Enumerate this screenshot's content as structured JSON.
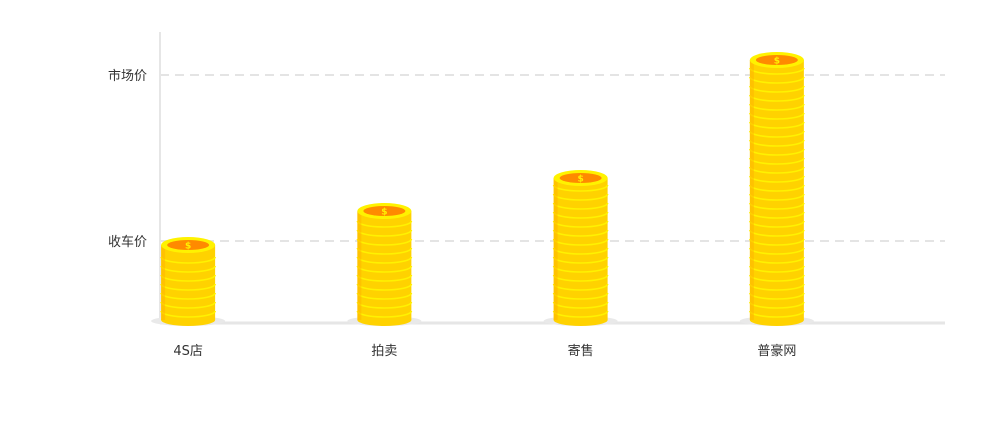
{
  "chart_data": {
    "type": "bar",
    "title": "",
    "xlabel": "",
    "ylabel": "",
    "categories": [
      "4S店",
      "拍卖",
      "寄售",
      "普豪网"
    ],
    "values": [
      75,
      109,
      142,
      260
    ],
    "ylim": [
      0,
      290
    ],
    "reference_lines": [
      {
        "label": "收车价",
        "value": 79
      },
      {
        "label": "市场价",
        "value": 245
      }
    ],
    "grid": false,
    "legend": "none",
    "colors": {
      "coin": "#ffd200",
      "coin_edge": "#ffb400",
      "coin_rim": "#fff200",
      "coin_face": "#ff8a00",
      "axis": "#e6e6e6",
      "reference_line": "#e4e4e4",
      "label_text": "#333333"
    }
  }
}
